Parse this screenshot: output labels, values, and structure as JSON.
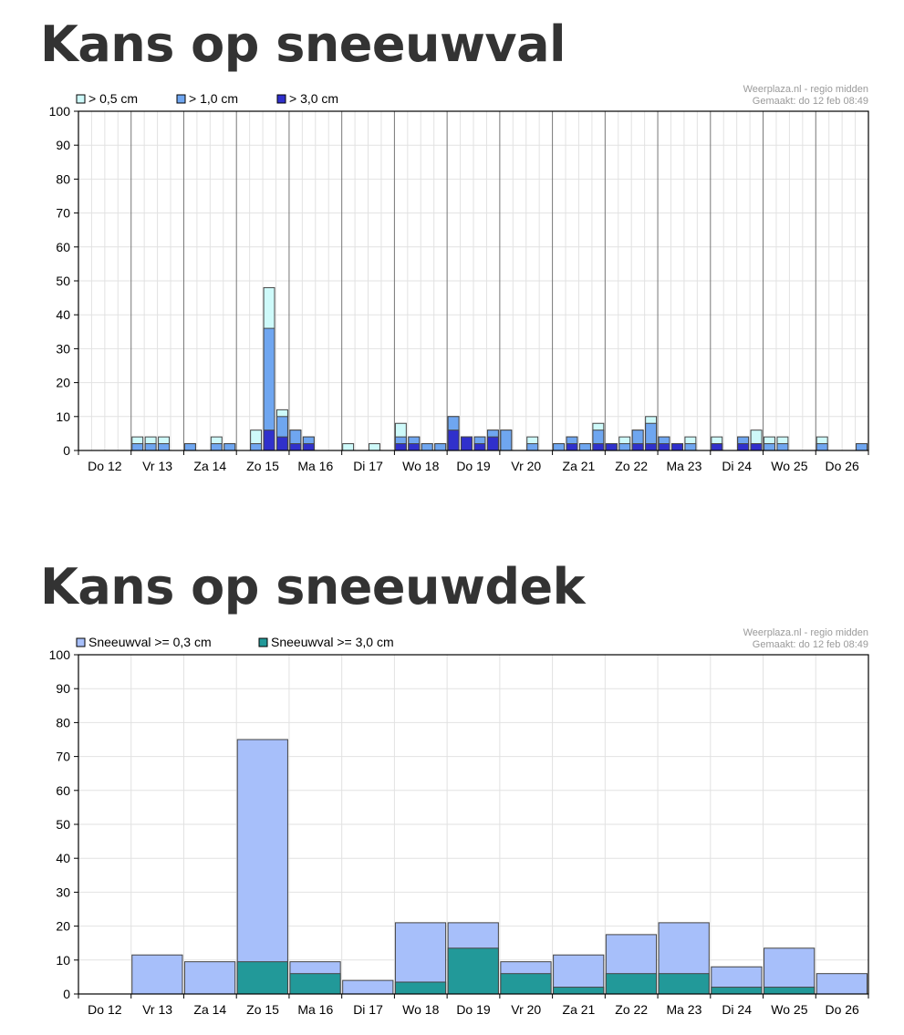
{
  "page": {
    "title_snowfall": "Kans op sneeuwval",
    "title_snowcover": "Kans op sneeuwdek"
  },
  "chart_data": [
    {
      "type": "bar",
      "stacked": true,
      "credit_line1": "Weerplaza.nl - regio midden",
      "credit_line2": "Gemaakt: do 12 feb 08:49",
      "days": [
        "Do 12",
        "Vr 13",
        "Za 14",
        "Zo 15",
        "Ma 16",
        "Di 17",
        "Wo 18",
        "Do 19",
        "Vr 20",
        "Za 21",
        "Zo 22",
        "Ma 23",
        "Di 24",
        "Wo 25",
        "Do 26"
      ],
      "bars_per_day": 4,
      "ylim": [
        0,
        100
      ],
      "yticks": [
        0,
        10,
        20,
        30,
        40,
        50,
        60,
        70,
        80,
        90,
        100
      ],
      "grid": true,
      "legend_position": "top-left",
      "series": [
        {
          "name": "> 0,5 cm",
          "color": "#cefafa",
          "values": [
            0,
            0,
            0,
            0,
            4,
            4,
            4,
            0,
            2,
            0,
            4,
            2,
            0,
            6,
            48,
            12,
            6,
            4,
            0,
            0,
            2,
            0,
            2,
            0,
            8,
            4,
            2,
            2,
            10,
            4,
            4,
            6,
            6,
            0,
            4,
            0,
            2,
            4,
            2,
            8,
            2,
            4,
            6,
            10,
            4,
            2,
            4,
            0,
            4,
            0,
            4,
            6,
            4,
            4,
            0,
            0,
            4,
            0,
            0,
            2
          ]
        },
        {
          "name": "> 1,0 cm",
          "color": "#6fa6f0",
          "values": [
            0,
            0,
            0,
            0,
            2,
            2,
            2,
            0,
            2,
            0,
            2,
            2,
            0,
            2,
            36,
            10,
            6,
            4,
            0,
            0,
            0,
            0,
            0,
            0,
            4,
            4,
            2,
            2,
            10,
            4,
            4,
            6,
            6,
            0,
            2,
            0,
            2,
            4,
            2,
            6,
            2,
            2,
            6,
            8,
            4,
            2,
            2,
            0,
            2,
            0,
            4,
            2,
            2,
            2,
            0,
            0,
            2,
            0,
            0,
            2
          ]
        },
        {
          "name": "> 3,0 cm",
          "color": "#3030cc",
          "values": [
            0,
            0,
            0,
            0,
            0,
            0,
            0,
            0,
            0,
            0,
            0,
            0,
            0,
            0,
            6,
            4,
            2,
            2,
            0,
            0,
            0,
            0,
            0,
            0,
            2,
            2,
            0,
            0,
            6,
            4,
            2,
            4,
            0,
            0,
            0,
            0,
            0,
            2,
            0,
            2,
            2,
            0,
            2,
            2,
            2,
            2,
            0,
            0,
            2,
            0,
            2,
            2,
            0,
            0,
            0,
            0,
            0,
            0,
            0,
            0
          ]
        }
      ]
    },
    {
      "type": "bar",
      "stacked": true,
      "credit_line1": "Weerplaza.nl - regio midden",
      "credit_line2": "Gemaakt: do 12 feb 08:49",
      "days": [
        "Do 12",
        "Vr 13",
        "Za 14",
        "Zo 15",
        "Ma 16",
        "Di 17",
        "Wo 18",
        "Do 19",
        "Vr 20",
        "Za 21",
        "Zo 22",
        "Ma 23",
        "Di 24",
        "Wo 25",
        "Do 26"
      ],
      "ylim": [
        0,
        100
      ],
      "yticks": [
        0,
        10,
        20,
        30,
        40,
        50,
        60,
        70,
        80,
        90,
        100
      ],
      "grid": true,
      "legend_position": "top-left",
      "series": [
        {
          "name": "Sneeuwval >= 0,3 cm",
          "color": "#a7bffa",
          "values": [
            0,
            11.5,
            9.5,
            75,
            9.5,
            4,
            21,
            21,
            9.5,
            11.5,
            17.5,
            21,
            8,
            13.5,
            6
          ]
        },
        {
          "name": "Sneeuwval >= 3,0 cm",
          "color": "#229999",
          "values": [
            0,
            0,
            0,
            9.5,
            6,
            0,
            3.5,
            13.5,
            6,
            2,
            6,
            6,
            2,
            2,
            0
          ]
        }
      ]
    }
  ]
}
